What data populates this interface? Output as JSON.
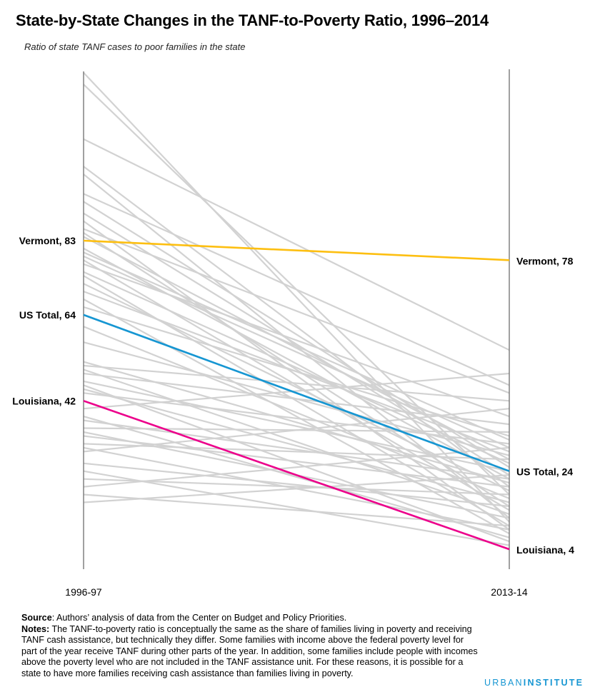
{
  "header": {
    "title": "State-by-State Changes in the TANF-to-Poverty Ratio, 1996–2014",
    "subtitle": "Ratio of state TANF cases to poor families in the state"
  },
  "chart_data": {
    "type": "line",
    "x": [
      "1996-97",
      "2013-14"
    ],
    "ylim": [
      0,
      126
    ],
    "colors": {
      "grey": "#d2d2d2",
      "axis": "#777777",
      "vermont": "#fdbf11",
      "us_total": "#1696d2",
      "louisiana": "#ec008b"
    },
    "highlighted": [
      {
        "name": "Vermont",
        "start": 83,
        "end": 78,
        "start_label": "Vermont, 83",
        "end_label": "Vermont, 78",
        "color": "#fdbf11"
      },
      {
        "name": "US Total",
        "start": 64,
        "end": 24,
        "start_label": "US Total, 64",
        "end_label": "US Total, 24",
        "color": "#1696d2"
      },
      {
        "name": "Louisiana",
        "start": 42,
        "end": 4,
        "start_label": "Louisiana, 42",
        "end_label": "Louisiana, 4",
        "color": "#ec008b"
      }
    ],
    "other_states": [
      [
        126,
        11
      ],
      [
        123,
        18
      ],
      [
        109,
        55
      ],
      [
        102,
        20
      ],
      [
        100,
        12
      ],
      [
        95,
        46
      ],
      [
        93,
        25
      ],
      [
        90,
        23
      ],
      [
        88,
        9
      ],
      [
        86,
        44
      ],
      [
        85,
        15
      ],
      [
        84,
        27
      ],
      [
        81,
        22
      ],
      [
        79,
        30
      ],
      [
        78,
        14
      ],
      [
        77,
        38
      ],
      [
        75,
        26
      ],
      [
        74,
        10
      ],
      [
        72,
        19
      ],
      [
        70,
        29
      ],
      [
        68,
        8
      ],
      [
        66,
        33
      ],
      [
        61,
        17
      ],
      [
        57,
        28
      ],
      [
        52,
        21
      ],
      [
        51,
        42
      ],
      [
        50,
        13
      ],
      [
        49,
        36
      ],
      [
        47,
        24
      ],
      [
        46,
        6
      ],
      [
        45,
        16
      ],
      [
        44,
        31
      ],
      [
        40,
        49
      ],
      [
        38,
        7
      ],
      [
        37,
        22
      ],
      [
        35,
        34
      ],
      [
        34,
        12
      ],
      [
        33,
        20
      ],
      [
        31,
        27
      ],
      [
        30,
        9
      ],
      [
        29,
        40
      ],
      [
        26,
        15
      ],
      [
        24,
        5
      ],
      [
        22,
        18
      ],
      [
        20,
        30
      ],
      [
        18,
        10
      ],
      [
        16,
        23
      ],
      [
        80,
        32
      ]
    ]
  },
  "notes": {
    "source_label": "Source",
    "source_text": ": Authors’ analysis of data from the Center on Budget and Policy Priorities.",
    "notes_label": "Notes:",
    "notes_text": " The TANF-to-poverty ratio is conceptually the same as the share of families living in poverty and receiving TANF cash assistance, but technically they differ. Some families with income above the federal poverty level for part of the year receive TANF during other parts of the year. In addition, some families include people with incomes above the poverty level who are not included in the TANF assistance unit. For these reasons, it is possible for a state to have more families receiving cash assistance than families living in poverty."
  },
  "logo": {
    "part1": "URBAN",
    "part2": "INSTITUTE"
  }
}
